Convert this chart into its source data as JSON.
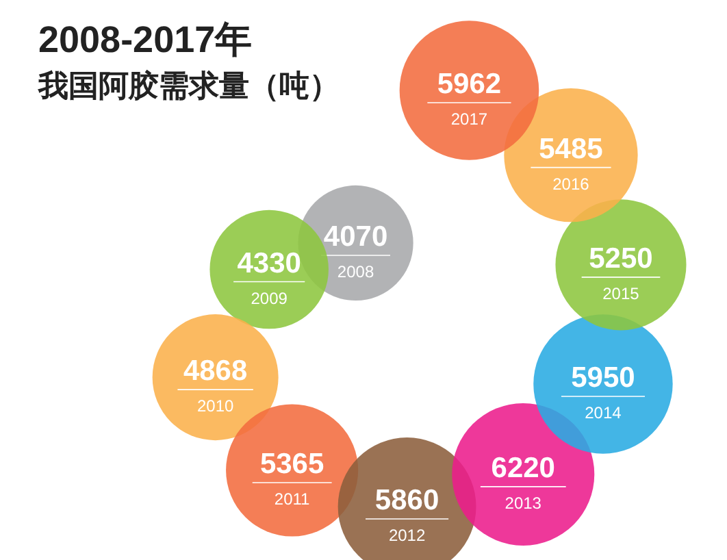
{
  "chart_data": {
    "type": "other",
    "title": "2008-2017年",
    "subtitle": "我国阿胶需求量（吨）",
    "categories": [
      "2008",
      "2009",
      "2010",
      "2011",
      "2012",
      "2013",
      "2014",
      "2015",
      "2016",
      "2017"
    ],
    "values": [
      4070,
      4330,
      4868,
      5365,
      5860,
      6220,
      5950,
      5250,
      5485,
      5962
    ],
    "colors": [
      "#a7a9ab",
      "#8dc63f",
      "#fbb14b",
      "#f26c3f",
      "#8c5e3c",
      "#ec1c8c",
      "#29abe2",
      "#8dc63f",
      "#fbb14b",
      "#f26c3f"
    ],
    "data_labels": true
  }
}
